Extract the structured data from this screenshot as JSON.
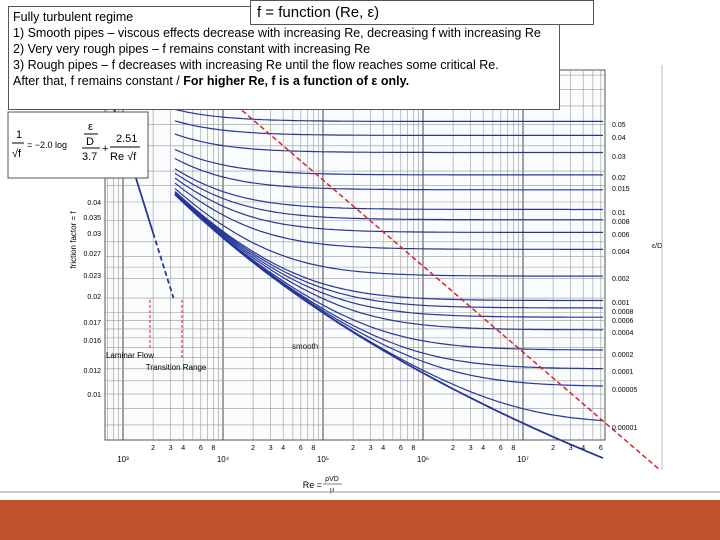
{
  "title": "f = function (Re, ε)",
  "notes": {
    "heading": "Fully turbulent regime",
    "items": [
      "1) Smooth pipes – viscous effects decrease with increasing Re, decreasing f with increasing Re",
      "2) Very very rough pipes – f remains constant with increasing Re",
      "3) Rough pipes – f decreases with increasing Re until the flow reaches some critical Re."
    ],
    "last": {
      "text": "After that, f remains constant / ",
      "bold": "For higher Re, f is a function of ε only."
    }
  },
  "formula": {
    "lhs_num": "1",
    "lhs_den": "√f",
    "eq": "= −2.0 log",
    "eps": "ε",
    "d": "D",
    "den1": "3.7",
    "plus": "+",
    "num2": "2.51",
    "den2": "Re √f"
  },
  "moody": {
    "y_label": "friction factor = f",
    "f_ticks": [
      "0.04",
      "0.035",
      "0.03",
      "0.027",
      "0.023",
      "0.02",
      "0.017",
      "0.016",
      "0.012",
      "0.01"
    ],
    "roughness_label": "ε/D",
    "roughness": [
      "0.05",
      "0.04",
      "0.03",
      "0.02",
      "0.015",
      "0.01",
      "0.008",
      "0.006",
      "0.004",
      "0.002",
      "0.001",
      "0.0008",
      "0.0006",
      "0.0004",
      "0.0002",
      "0.0001",
      "0.00005",
      "0.00001"
    ],
    "re_minor": [
      "2",
      "3",
      "4",
      "6",
      "8"
    ],
    "re_decades": [
      "10³",
      "10⁴",
      "10⁵",
      "10⁶",
      "10⁷"
    ],
    "x_label": {
      "lhs": "Re = ",
      "num": "ρVD",
      "den": "μ"
    },
    "laminar": "Laminar Flow",
    "transition": "Transition Range",
    "smooth": "smooth"
  }
}
